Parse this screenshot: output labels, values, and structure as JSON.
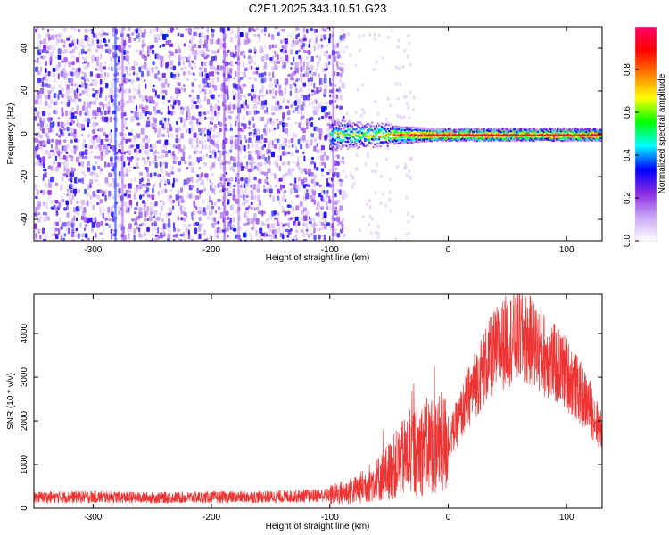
{
  "title": "C2E1.2025.343.10.51.G23",
  "chart_data": [
    {
      "type": "heatmap",
      "xlabel": "Height of straight line (km)",
      "ylabel": "Frequency (Hz)",
      "xlim": [
        -350,
        130
      ],
      "ylim": [
        -50,
        50
      ],
      "x_ticks": [
        -300,
        -200,
        -100,
        0,
        100
      ],
      "y_ticks": [
        -40,
        -20,
        0,
        20,
        40
      ],
      "noise_region_x": [
        -350,
        -90
      ],
      "signal_start_x": -100,
      "signal_center_freq": 0,
      "colorbar": {
        "label": "Normalized spectral amplitude",
        "range": [
          0,
          1
        ],
        "ticks": [
          0,
          0.2,
          0.4,
          0.6,
          0.8
        ],
        "colors": [
          "#ffffff",
          "#c8a6f5",
          "#8a2be2",
          "#0000ff",
          "#00ffff",
          "#00ff00",
          "#ffff00",
          "#ff8000",
          "#ff0000",
          "#ff0066"
        ]
      }
    },
    {
      "type": "line",
      "xlabel": "Height of straight line (km)",
      "ylabel": "SNR (10 * v/v)",
      "xlim": [
        -350,
        130
      ],
      "ylim": [
        0,
        4900
      ],
      "x_ticks": [
        -300,
        -200,
        -100,
        0,
        100
      ],
      "y_ticks": [
        0,
        1000,
        2000,
        3000,
        4000
      ],
      "color": "#ee3333",
      "envelope": {
        "x": [
          -350,
          -300,
          -250,
          -200,
          -150,
          -100,
          -80,
          -60,
          -50,
          -40,
          -30,
          -20,
          -10,
          0,
          10,
          20,
          30,
          40,
          50,
          60,
          70,
          80,
          90,
          100,
          110,
          120,
          130
        ],
        "y": [
          250,
          260,
          240,
          250,
          260,
          300,
          400,
          650,
          850,
          1100,
          1300,
          1400,
          1450,
          1500,
          2100,
          2700,
          3200,
          3600,
          3850,
          3950,
          3800,
          3550,
          3300,
          3100,
          2700,
          2300,
          1700
        ]
      }
    }
  ]
}
